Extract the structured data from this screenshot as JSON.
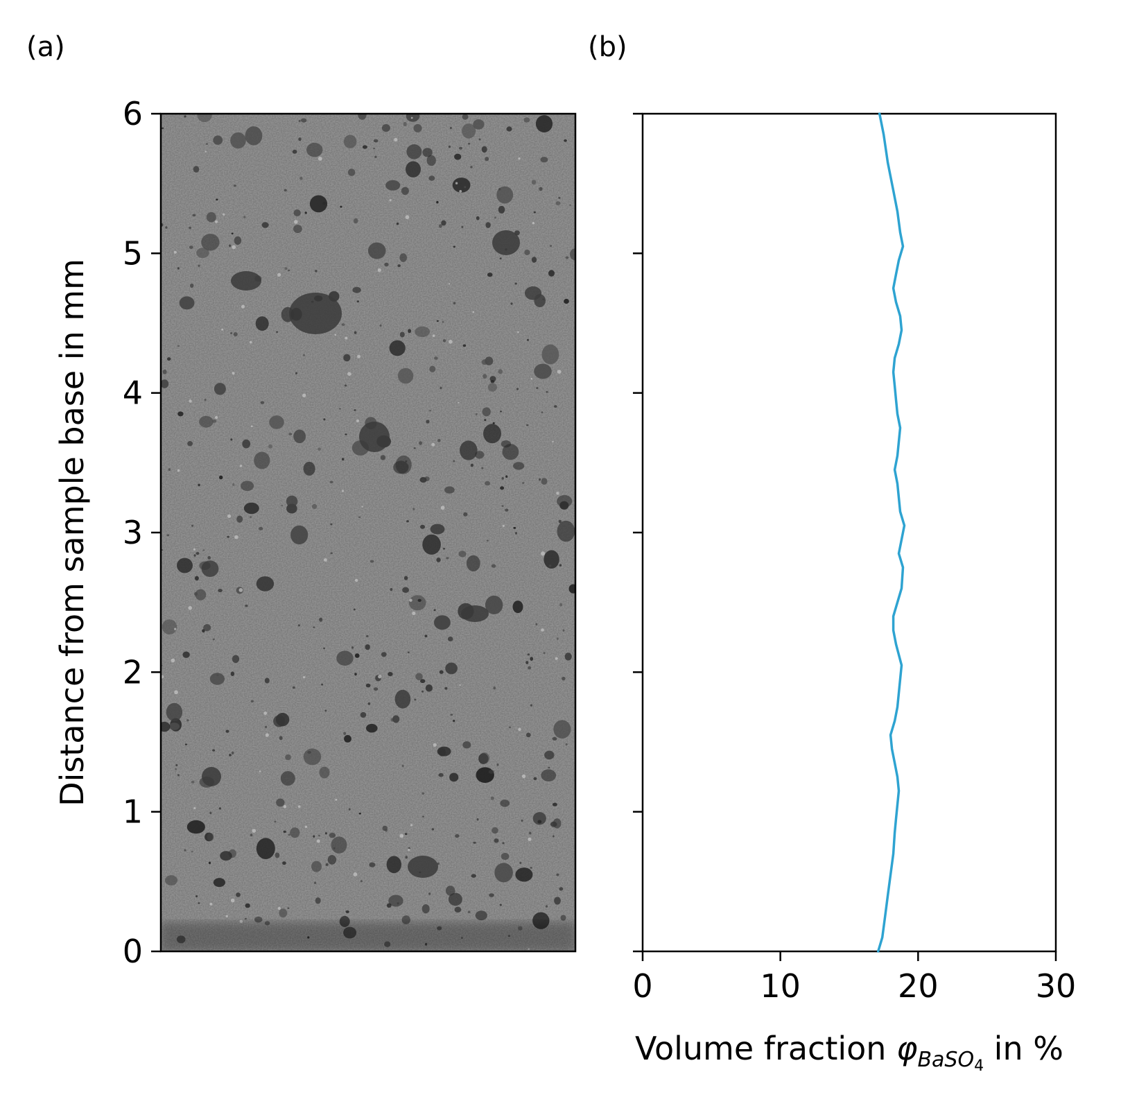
{
  "panel_labels": {
    "a": "(a)",
    "b": "(b)"
  },
  "colors": {
    "series": "#2ea3d1",
    "axis": "#000000",
    "image_base": "#7a7a7a"
  },
  "image_panel": {
    "description_kind": "grayscale-micrograph"
  },
  "chart_data": [
    {
      "type": "image",
      "panel": "a",
      "ylabel": "Distance from sample base in mm",
      "ylim": [
        0,
        6
      ],
      "yticks": [
        0,
        1,
        2,
        3,
        4,
        5,
        6
      ],
      "ytick_labels": [
        "0",
        "1",
        "2",
        "3",
        "4",
        "5",
        "6"
      ]
    },
    {
      "type": "line",
      "panel": "b",
      "xlabel_prefix": "Volume fraction ",
      "xlabel_symbol": "φ",
      "xlabel_subscript_main": "BaSO",
      "xlabel_subscript_sub": "4",
      "xlabel_suffix": " in %",
      "xlim": [
        0,
        30
      ],
      "ylim": [
        0,
        6
      ],
      "xticks": [
        0,
        10,
        20,
        30
      ],
      "xtick_labels": [
        "0",
        "10",
        "20",
        "30"
      ],
      "yticks": [
        0,
        1,
        2,
        3,
        4,
        5,
        6
      ],
      "grid": false,
      "series": [
        {
          "x": [
            17.1,
            17.4,
            17.6,
            17.8,
            18.0,
            18.2,
            18.3,
            18.4,
            18.5,
            18.6,
            18.5,
            18.3,
            18.1,
            18.0,
            18.3,
            18.5,
            18.6,
            18.7,
            18.8,
            18.4,
            18.2,
            18.2,
            18.5,
            18.8,
            18.9,
            18.6,
            18.8,
            19.0,
            18.7,
            18.6,
            18.5,
            18.3,
            18.5,
            18.6,
            18.7,
            18.5,
            18.4,
            18.3,
            18.2,
            18.3,
            18.6,
            18.8,
            18.7,
            18.4,
            18.2,
            18.4,
            18.6,
            18.9,
            18.7,
            18.5,
            18.2,
            17.8,
            17.5,
            17.2
          ],
          "y": [
            0.0,
            0.1,
            0.25,
            0.4,
            0.55,
            0.7,
            0.85,
            0.95,
            1.05,
            1.15,
            1.25,
            1.35,
            1.45,
            1.55,
            1.65,
            1.75,
            1.85,
            1.95,
            2.05,
            2.2,
            2.3,
            2.4,
            2.5,
            2.6,
            2.75,
            2.85,
            2.95,
            3.05,
            3.15,
            3.25,
            3.35,
            3.45,
            3.55,
            3.65,
            3.75,
            3.85,
            3.95,
            4.05,
            4.15,
            4.25,
            4.35,
            4.45,
            4.55,
            4.65,
            4.75,
            4.85,
            4.95,
            5.05,
            5.15,
            5.3,
            5.45,
            5.65,
            5.85,
            6.0
          ]
        }
      ]
    }
  ]
}
